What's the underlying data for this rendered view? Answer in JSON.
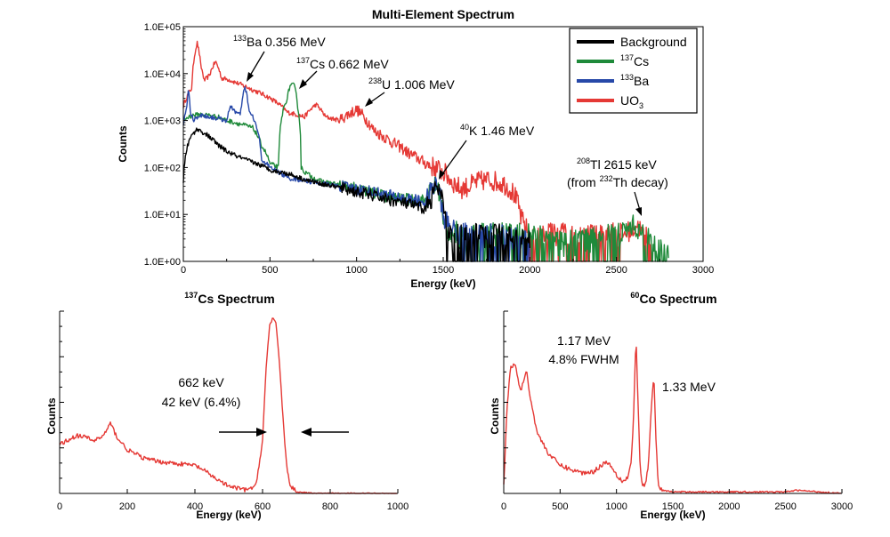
{
  "colors": {
    "background": "#000000",
    "cs137": "#1f8a3a",
    "ba133": "#2748a8",
    "uo3": "#e53935"
  },
  "chart_data": [
    {
      "type": "line",
      "title": "Multi-Element Spectrum",
      "xlabel": "Energy (keV)",
      "ylabel": "Counts",
      "xlim": [
        0,
        3000
      ],
      "ylim": [
        1,
        100000
      ],
      "yscale": "log",
      "xticks": [
        "0",
        "500",
        "1000",
        "1500",
        "2000",
        "2500",
        "3000"
      ],
      "yticks": [
        "1.0E+00",
        "1.0E+01",
        "1.0E+02",
        "1.0E+03",
        "1.0E+04",
        "1.0E+05"
      ],
      "legend_position": "top-right",
      "legend": [
        {
          "key": "background",
          "sup": "",
          "base": "Background",
          "sub": ""
        },
        {
          "key": "cs137",
          "sup": "137",
          "base": "Cs",
          "sub": ""
        },
        {
          "key": "ba133",
          "sup": "133",
          "base": "Ba",
          "sub": ""
        },
        {
          "key": "uo3",
          "sup": "",
          "base": "UO",
          "sub": "3"
        }
      ],
      "series": [
        {
          "key": "background",
          "x": [
            0,
            20,
            50,
            80,
            100,
            150,
            200,
            250,
            300,
            350,
            400,
            450,
            500,
            550,
            600,
            700,
            800,
            1000,
            1200,
            1400,
            1440,
            1460,
            1500,
            1520,
            1600,
            1800,
            2000
          ],
          "y": [
            50,
            250,
            500,
            650,
            600,
            450,
            300,
            220,
            180,
            150,
            130,
            110,
            90,
            80,
            75,
            55,
            45,
            30,
            20,
            13,
            25,
            40,
            15,
            3,
            3,
            3,
            2
          ]
        },
        {
          "key": "cs137",
          "x": [
            0,
            30,
            60,
            100,
            150,
            200,
            250,
            300,
            350,
            400,
            450,
            500,
            550,
            600,
            620,
            640,
            660,
            680,
            700,
            750,
            800,
            1000,
            1200,
            1400,
            1450,
            1480,
            1500,
            1600,
            1800,
            2000,
            2200,
            2500,
            2600,
            2615,
            2640,
            2700,
            2800
          ],
          "y": [
            1000,
            1200,
            1300,
            1350,
            1300,
            1200,
            1000,
            900,
            800,
            700,
            300,
            120,
            100,
            3000,
            6000,
            5500,
            2000,
            100,
            80,
            60,
            50,
            35,
            22,
            20,
            40,
            30,
            5,
            3,
            3,
            3,
            2,
            3,
            6,
            5,
            4,
            2,
            1
          ]
        },
        {
          "key": "ba133",
          "x": [
            0,
            20,
            30,
            40,
            60,
            80,
            100,
            150,
            200,
            250,
            276,
            303,
            330,
            356,
            380,
            400,
            450,
            500,
            600,
            800,
            1000,
            1200,
            1400,
            1440,
            1460,
            1500,
            1600,
            1800,
            2000
          ],
          "y": [
            800,
            2000,
            4500,
            1500,
            1000,
            1200,
            1300,
            1200,
            1100,
            1000,
            2000,
            1500,
            1300,
            5000,
            1500,
            1200,
            150,
            100,
            60,
            45,
            35,
            25,
            18,
            35,
            45,
            8,
            3,
            3,
            2
          ]
        },
        {
          "key": "uo3",
          "x": [
            0,
            50,
            80,
            100,
            120,
            150,
            186,
            220,
            260,
            300,
            350,
            400,
            500,
            600,
            700,
            766,
            820,
            900,
            1001,
            1060,
            1100,
            1200,
            1300,
            1400,
            1460,
            1500,
            1550,
            1600,
            1650,
            1700,
            1764,
            1850,
            1900,
            1950,
            2000,
            2200,
            2400,
            2500,
            2600,
            2615,
            2650,
            2700
          ],
          "y": [
            2000,
            5000,
            45000,
            15000,
            7000,
            9000,
            18000,
            8000,
            7500,
            6500,
            5500,
            4500,
            3000,
            1500,
            1200,
            2200,
            1200,
            1000,
            1700,
            1000,
            600,
            350,
            200,
            120,
            95,
            80,
            50,
            35,
            40,
            50,
            55,
            45,
            30,
            8,
            3,
            3,
            3,
            3,
            5,
            6,
            4,
            1
          ]
        }
      ],
      "annotations": [
        {
          "sup": "133",
          "base": "Ba  0.356 MeV"
        },
        {
          "sup": "137",
          "base": "Cs  0.662 MeV"
        },
        {
          "sup": "238",
          "base": "U  1.006 MeV"
        },
        {
          "sup": "40",
          "base": "K  1.46 MeV"
        },
        {
          "sup": "208",
          "base": "Tl  2615 keV"
        },
        {
          "pre": "(from ",
          "sup": "232",
          "base": "Th decay)"
        }
      ]
    },
    {
      "type": "line",
      "title_sup": "137",
      "title_base": "Cs Spectrum",
      "xlabel": "Energy (keV)",
      "ylabel": "Counts",
      "xlim": [
        0,
        1000
      ],
      "xticks": [
        "0",
        "200",
        "400",
        "600",
        "800",
        "1000"
      ],
      "series": [
        {
          "key": "uo3",
          "x": [
            0,
            20,
            50,
            80,
            100,
            130,
            150,
            170,
            200,
            250,
            300,
            350,
            400,
            420,
            450,
            500,
            550,
            580,
            600,
            610,
            620,
            630,
            640,
            650,
            660,
            670,
            680,
            700,
            750,
            800,
            850,
            900,
            1000
          ],
          "y": [
            0.28,
            0.3,
            0.33,
            0.32,
            0.3,
            0.33,
            0.4,
            0.32,
            0.25,
            0.2,
            0.18,
            0.17,
            0.16,
            0.14,
            0.1,
            0.04,
            0.02,
            0.04,
            0.3,
            0.7,
            0.95,
            1.0,
            0.96,
            0.75,
            0.45,
            0.18,
            0.05,
            0.01,
            0,
            0,
            0,
            0,
            0
          ]
        }
      ],
      "annotations": [
        "662 keV",
        "42 keV (6.4%)"
      ]
    },
    {
      "type": "line",
      "title_sup": "60",
      "title_base": "Co Spectrum",
      "xlabel": "Energy (keV)",
      "ylabel": "Counts",
      "xlim": [
        0,
        3000
      ],
      "xticks": [
        "0",
        "500",
        "1000",
        "1500",
        "2000",
        "2500",
        "3000"
      ],
      "series": [
        {
          "key": "uo3",
          "x": [
            0,
            30,
            60,
            100,
            150,
            200,
            250,
            300,
            400,
            500,
            600,
            700,
            800,
            900,
            950,
            1000,
            1050,
            1100,
            1130,
            1150,
            1173,
            1190,
            1210,
            1230,
            1250,
            1280,
            1310,
            1332,
            1350,
            1370,
            1400,
            1500,
            1600,
            2000,
            2500,
            2600,
            3000
          ],
          "y": [
            0.05,
            0.55,
            0.8,
            0.82,
            0.65,
            0.78,
            0.55,
            0.38,
            0.25,
            0.18,
            0.15,
            0.13,
            0.14,
            0.2,
            0.18,
            0.12,
            0.08,
            0.1,
            0.2,
            0.45,
            1.0,
            0.6,
            0.15,
            0.05,
            0.05,
            0.15,
            0.55,
            0.75,
            0.35,
            0.05,
            0.02,
            0.01,
            0.01,
            0.01,
            0.01,
            0.02,
            0
          ]
        }
      ],
      "annotations": [
        "1.17 MeV",
        "4.8% FWHM",
        "1.33 MeV"
      ]
    }
  ]
}
